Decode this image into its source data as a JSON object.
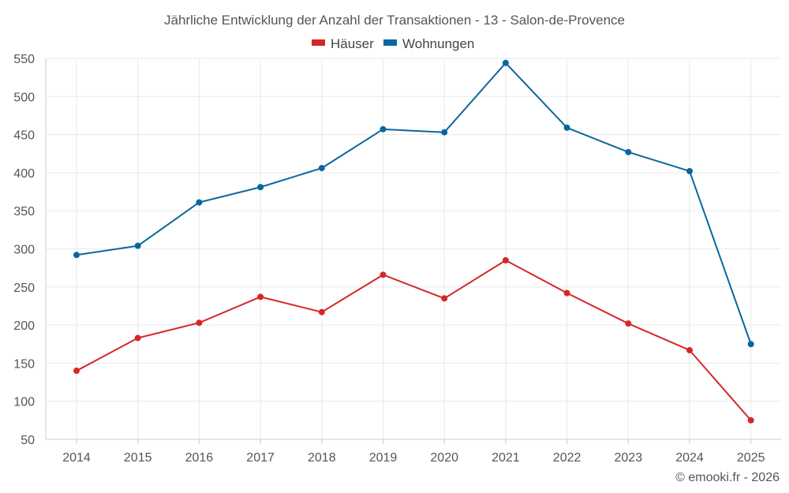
{
  "chart_data": {
    "type": "line",
    "title": "Jährliche Entwicklung der Anzahl der Transaktionen - 13 - Salon-de-Provence",
    "categories": [
      "2014",
      "2015",
      "2016",
      "2017",
      "2018",
      "2019",
      "2020",
      "2021",
      "2022",
      "2023",
      "2024",
      "2025"
    ],
    "series": [
      {
        "name": "Häuser",
        "color": "#d62728",
        "values": [
          140,
          183,
          203,
          237,
          217,
          266,
          235,
          285,
          242,
          202,
          167,
          75
        ]
      },
      {
        "name": "Wohnungen",
        "color": "#0a66a0",
        "values": [
          292,
          304,
          361,
          381,
          406,
          457,
          453,
          544,
          459,
          427,
          402,
          175
        ]
      }
    ],
    "xlabel": "",
    "ylabel": "",
    "ylim": [
      50,
      550
    ],
    "yticks": [
      50,
      100,
      150,
      200,
      250,
      300,
      350,
      400,
      450,
      500,
      550
    ],
    "grid": true,
    "legend": "top-center"
  },
  "credit": "© emooki.fr - 2026"
}
